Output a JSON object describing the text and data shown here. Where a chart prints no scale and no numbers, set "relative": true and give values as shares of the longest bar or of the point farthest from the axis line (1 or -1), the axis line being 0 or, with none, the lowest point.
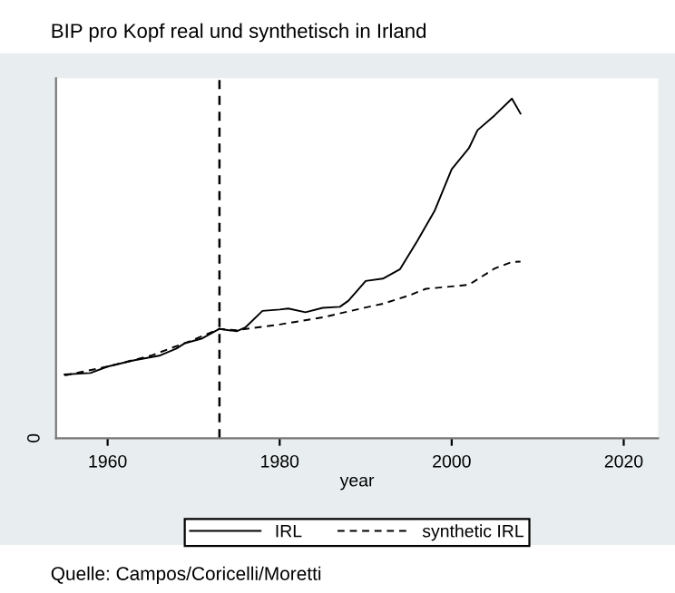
{
  "chart_data": {
    "type": "line",
    "title": "BIP pro Kopf real und synthetisch in Irland",
    "xlabel": "year",
    "annotations": [
      "Quelle: Campos/Coricelli/Moretti",
      "0"
    ],
    "relative": true,
    "xlim": [
      1954,
      2024
    ],
    "xticks": [
      1960,
      1980,
      2000,
      2020
    ],
    "series": [
      {
        "name": "IRL",
        "color": "#000000",
        "line_style": "solid",
        "x": [
          1955,
          1958,
          1960,
          1963,
          1966,
          1968,
          1969,
          1971,
          1973,
          1975,
          1976,
          1978,
          1980,
          1981,
          1983,
          1985,
          1987,
          1988,
          1990,
          1992,
          1994,
          1996,
          1998,
          2000,
          2002,
          2003,
          2005,
          2007,
          2008
        ],
        "values": [
          0.188,
          0.192,
          0.211,
          0.229,
          0.243,
          0.264,
          0.28,
          0.294,
          0.322,
          0.315,
          0.326,
          0.375,
          0.379,
          0.382,
          0.371,
          0.384,
          0.387,
          0.405,
          0.463,
          0.47,
          0.498,
          0.581,
          0.669,
          0.792,
          0.854,
          0.907,
          0.951,
          1.0,
          0.956
        ]
      },
      {
        "name": "synthetic IRL",
        "color": "#000000",
        "line_style": "dashed",
        "x": [
          1955,
          1960,
          1965,
          1970,
          1973,
          1975,
          1980,
          1985,
          1990,
          1992,
          1995,
          1997,
          2000,
          2002,
          2005,
          2007,
          2008
        ],
        "values": [
          0.185,
          0.211,
          0.243,
          0.29,
          0.322,
          0.318,
          0.335,
          0.356,
          0.385,
          0.396,
          0.42,
          0.44,
          0.447,
          0.452,
          0.5,
          0.519,
          0.52
        ]
      }
    ],
    "ref_lines": [
      {
        "axis": "x",
        "value": 1973,
        "color": "#000000",
        "line_style": "dashed"
      }
    ],
    "legend": "bottom"
  }
}
